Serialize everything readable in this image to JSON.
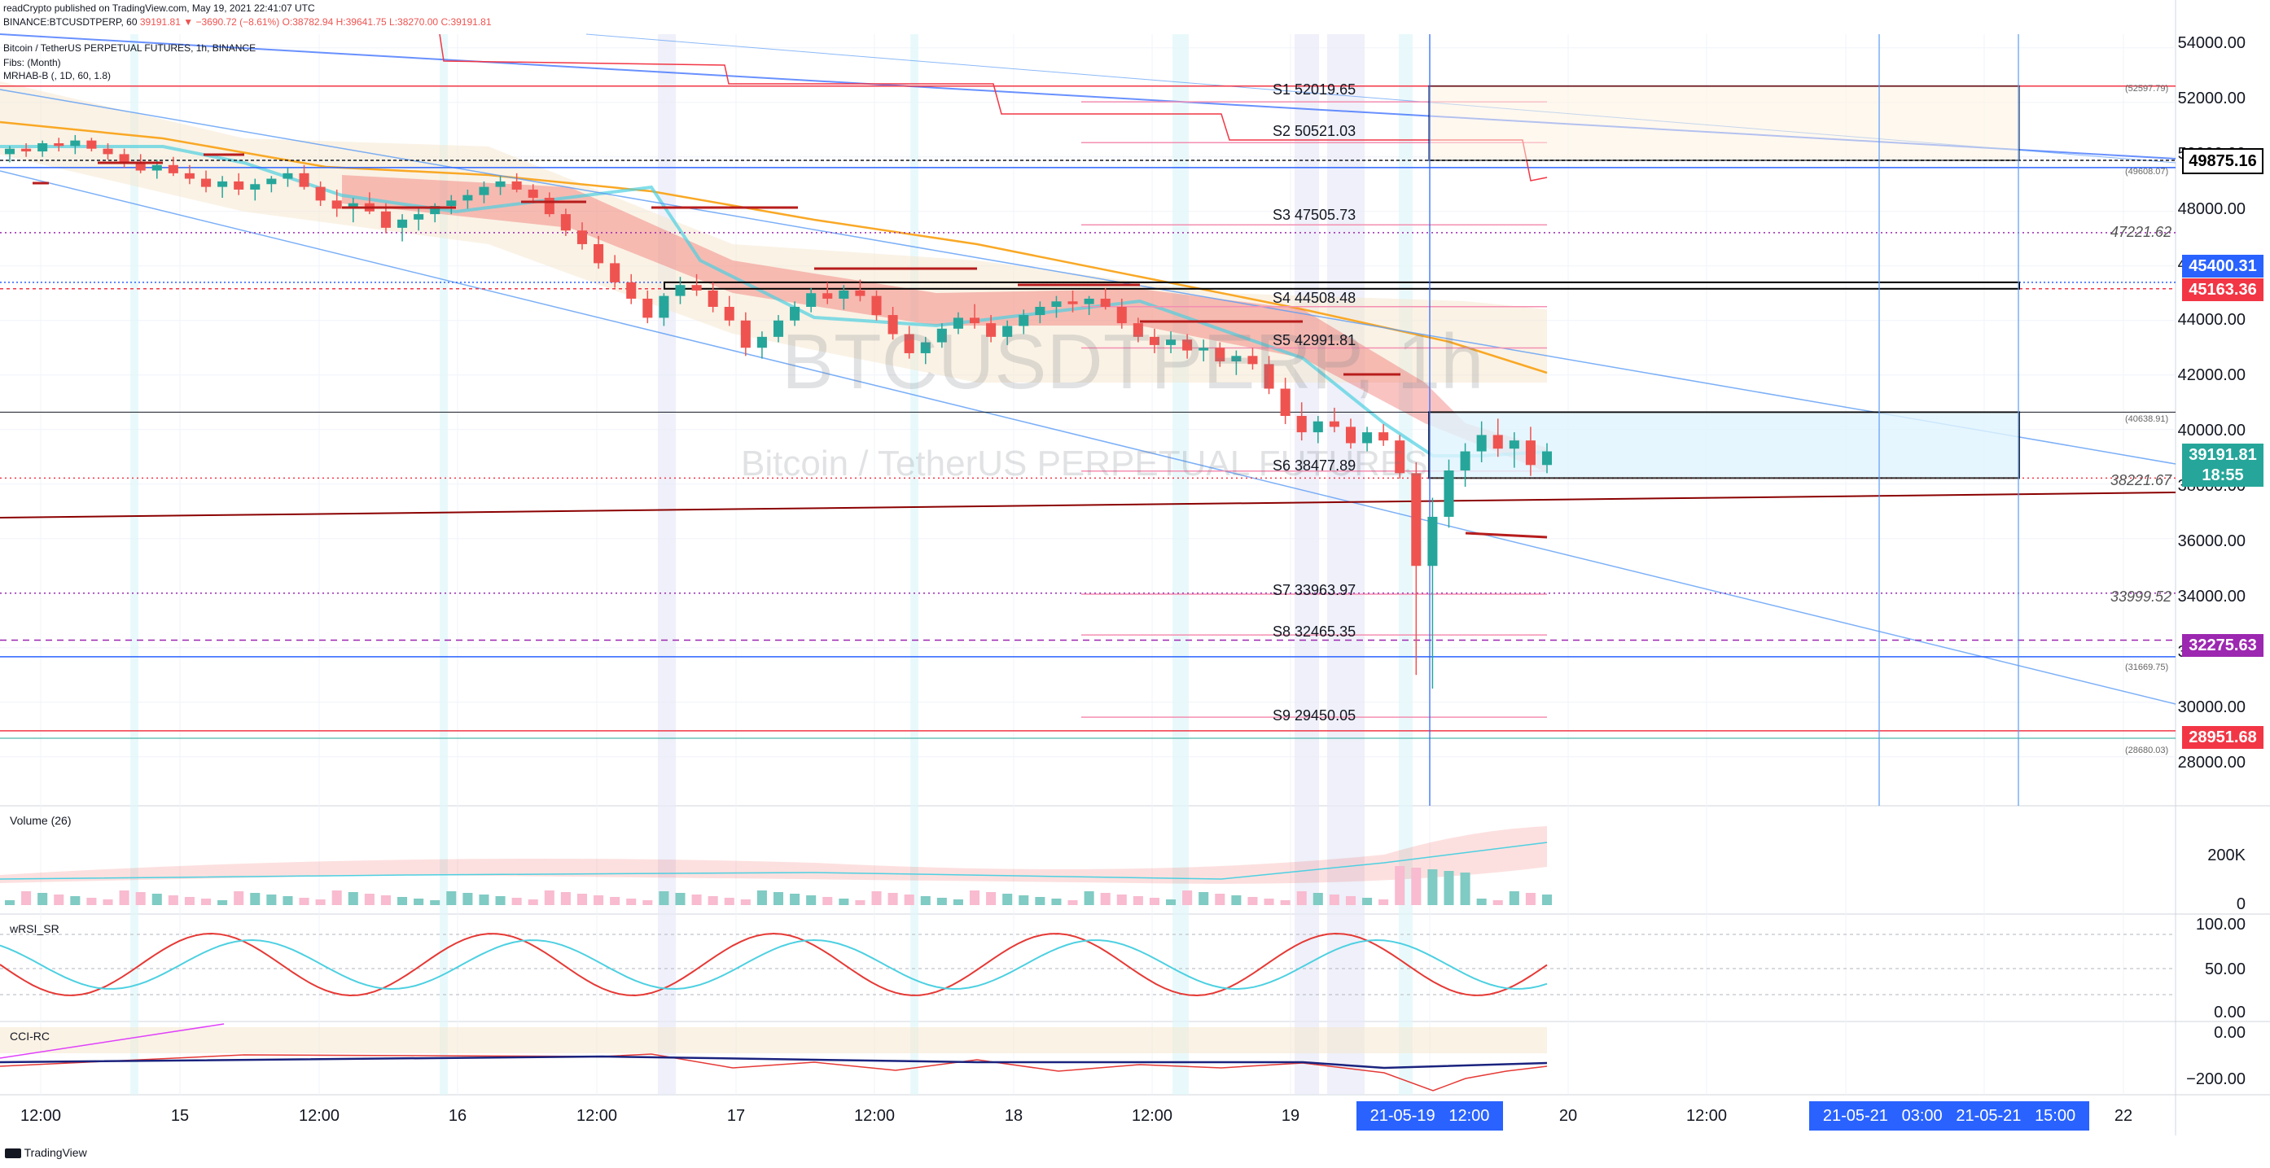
{
  "header": {
    "published": "readCrypto published on TradingView.com, May 19, 2021 22:41:07 UTC",
    "symbol_line_sym": "BINANCE:BTCUSDTPERP, 60",
    "symbol_line_last": "39191.81",
    "symbol_line_chg": "▼ −3690.72 (−8.61%)",
    "symbol_line_o": "O:38782.94",
    "symbol_line_h": "H:39641.75",
    "symbol_line_l": "L:38270.00",
    "symbol_line_c": "C:39191.81",
    "pane_title": "Bitcoin / TetherUS PERPETUAL FUTURES, 1h, BINANCE",
    "study1": "Fibs: (Month)",
    "study2": "MRHAB-B (, 1D, 60, 1.8)"
  },
  "watermark": {
    "ticker": "BTCUSDTPERP, 1h",
    "name": "Bitcoin / TetherUS PERPETUAL FUTURES"
  },
  "chart_data": {
    "type": "candlestick",
    "title": "Bitcoin / TetherUS PERPETUAL FUTURES, 1h, BINANCE",
    "y_ticks": [
      "54000.00",
      "52000.00",
      "50000.00",
      "48000.00",
      "46000.00",
      "44000.00",
      "42000.00",
      "40000.00",
      "38000.00",
      "36000.00",
      "34000.00",
      "32000.00",
      "30000.00",
      "28000.00"
    ],
    "ylim": [
      26500,
      54500
    ],
    "x_ticks": [
      "12:00",
      "15",
      "12:00",
      "16",
      "12:00",
      "17",
      "12:00",
      "18",
      "12:00",
      "19",
      "21-05-19",
      "12:00",
      "20",
      "12:00",
      "21-05-21",
      "03:00",
      "21-05-21",
      "15:00",
      "22"
    ],
    "price_labels": [
      {
        "value": "49875.16",
        "color": "#ffffff",
        "text": "#000000"
      },
      {
        "value": "45400.31",
        "color": "#2962ff"
      },
      {
        "value": "45163.36",
        "color": "#f23645"
      },
      {
        "value": "39191.81",
        "color": "#26a69a"
      },
      {
        "value": "18:55",
        "color": "#26a69a"
      },
      {
        "value": "32275.63",
        "color": "#9c27b0"
      },
      {
        "value": "28951.68",
        "color": "#f23645"
      }
    ],
    "fib_levels": [
      {
        "label": "S1 52019.65",
        "value": 52019.65
      },
      {
        "label": "S2 50521.03",
        "value": 50521.03
      },
      {
        "label": "S3 47505.73",
        "value": 47505.73
      },
      {
        "label": "S4 44508.48",
        "value": 44508.48
      },
      {
        "label": "S5 42991.81",
        "value": 42991.81
      },
      {
        "label": "S6 38477.89",
        "value": 38477.89
      },
      {
        "label": "S7 33963.97",
        "value": 33963.97
      },
      {
        "label": "S8 32465.35",
        "value": 32465.35
      },
      {
        "label": "S9 29450.05",
        "value": 29450.05
      }
    ],
    "right_labels": [
      "47221.62",
      "38221.67",
      "33999.52"
    ],
    "small_labels": [
      "(52597.79)",
      "(49608.07)",
      "(40638.91)",
      "(31669.75)",
      "(28680.03)"
    ],
    "candles": [
      [
        50100,
        50400,
        49800,
        50300
      ],
      [
        50300,
        50500,
        50000,
        50200
      ],
      [
        50200,
        50600,
        50000,
        50500
      ],
      [
        50500,
        50700,
        50200,
        50400
      ],
      [
        50400,
        50800,
        50100,
        50600
      ],
      [
        50600,
        50700,
        50200,
        50300
      ],
      [
        50300,
        50500,
        49900,
        50100
      ],
      [
        50100,
        50300,
        49600,
        49800
      ],
      [
        49800,
        50100,
        49400,
        49500
      ],
      [
        49500,
        49900,
        49200,
        49700
      ],
      [
        49700,
        50000,
        49300,
        49400
      ],
      [
        49400,
        49700,
        49000,
        49200
      ],
      [
        49200,
        49500,
        48700,
        48900
      ],
      [
        48900,
        49300,
        48500,
        49100
      ],
      [
        49100,
        49400,
        48600,
        48800
      ],
      [
        48800,
        49200,
        48400,
        49000
      ],
      [
        49000,
        49300,
        48700,
        49200
      ],
      [
        49200,
        49600,
        48900,
        49400
      ],
      [
        49400,
        49700,
        48800,
        48900
      ],
      [
        48900,
        49100,
        48200,
        48400
      ],
      [
        48400,
        48800,
        47800,
        48100
      ],
      [
        48100,
        48500,
        47600,
        48300
      ],
      [
        48300,
        48700,
        47900,
        48000
      ],
      [
        48000,
        48300,
        47200,
        47400
      ],
      [
        47400,
        47900,
        46900,
        47700
      ],
      [
        47700,
        48100,
        47300,
        47900
      ],
      [
        47900,
        48300,
        47600,
        48200
      ],
      [
        48200,
        48600,
        47900,
        48400
      ],
      [
        48400,
        48800,
        48100,
        48600
      ],
      [
        48600,
        49100,
        48300,
        48900
      ],
      [
        48900,
        49300,
        48600,
        49100
      ],
      [
        49100,
        49400,
        48700,
        48800
      ],
      [
        48800,
        49000,
        48300,
        48500
      ],
      [
        48500,
        48700,
        47800,
        47900
      ],
      [
        47900,
        48100,
        47100,
        47300
      ],
      [
        47300,
        47600,
        46600,
        46800
      ],
      [
        46800,
        47100,
        45900,
        46100
      ],
      [
        46100,
        46400,
        45200,
        45400
      ],
      [
        45400,
        45700,
        44600,
        44800
      ],
      [
        44800,
        45100,
        43900,
        44100
      ],
      [
        44100,
        45000,
        43800,
        44900
      ],
      [
        44900,
        45600,
        44600,
        45300
      ],
      [
        45300,
        45700,
        44900,
        45100
      ],
      [
        45100,
        45400,
        44300,
        44500
      ],
      [
        44500,
        44900,
        43800,
        44000
      ],
      [
        44000,
        44300,
        42700,
        43000
      ],
      [
        43000,
        43600,
        42600,
        43400
      ],
      [
        43400,
        44200,
        43200,
        44000
      ],
      [
        44000,
        44700,
        43800,
        44500
      ],
      [
        44500,
        45200,
        44300,
        45000
      ],
      [
        45000,
        45400,
        44600,
        44800
      ],
      [
        44800,
        45300,
        44400,
        45100
      ],
      [
        45100,
        45500,
        44700,
        44900
      ],
      [
        44900,
        45100,
        44000,
        44200
      ],
      [
        44200,
        44500,
        43300,
        43500
      ],
      [
        43500,
        43800,
        42600,
        42800
      ],
      [
        42800,
        43400,
        42400,
        43200
      ],
      [
        43200,
        43900,
        43000,
        43700
      ],
      [
        43700,
        44300,
        43500,
        44100
      ],
      [
        44100,
        44600,
        43700,
        43900
      ],
      [
        43900,
        44200,
        43200,
        43400
      ],
      [
        43400,
        44000,
        43100,
        43800
      ],
      [
        43800,
        44400,
        43500,
        44200
      ],
      [
        44200,
        44700,
        43900,
        44500
      ],
      [
        44500,
        44900,
        44100,
        44700
      ],
      [
        44700,
        45100,
        44300,
        44600
      ],
      [
        44600,
        44900,
        44200,
        44800
      ],
      [
        44800,
        45200,
        44400,
        44500
      ],
      [
        44500,
        44800,
        43700,
        43900
      ],
      [
        43900,
        44100,
        43200,
        43400
      ],
      [
        43400,
        43700,
        42800,
        43100
      ],
      [
        43100,
        43600,
        42800,
        43300
      ],
      [
        43300,
        43500,
        42600,
        42900
      ],
      [
        42900,
        43300,
        42500,
        43000
      ],
      [
        43000,
        43200,
        42300,
        42500
      ],
      [
        42500,
        42900,
        42000,
        42700
      ],
      [
        42700,
        43000,
        42200,
        42400
      ],
      [
        42400,
        42700,
        41300,
        41500
      ],
      [
        41500,
        41900,
        40200,
        40500
      ],
      [
        40500,
        41000,
        39600,
        39900
      ],
      [
        39900,
        40500,
        39500,
        40300
      ],
      [
        40300,
        40800,
        39900,
        40100
      ],
      [
        40100,
        40400,
        39300,
        39500
      ],
      [
        39500,
        40100,
        39200,
        39900
      ],
      [
        39900,
        40200,
        39400,
        39600
      ],
      [
        39600,
        39800,
        38200,
        38400
      ],
      [
        38400,
        38800,
        31000,
        35000
      ],
      [
        35000,
        37500,
        30500,
        36800
      ],
      [
        36800,
        38900,
        36400,
        38500
      ],
      [
        38500,
        39500,
        37900,
        39200
      ],
      [
        39200,
        40300,
        38800,
        39800
      ],
      [
        39800,
        40400,
        39000,
        39300
      ],
      [
        39300,
        39900,
        38600,
        39600
      ],
      [
        39600,
        40100,
        38300,
        38700
      ],
      [
        38700,
        39500,
        38400,
        39200
      ]
    ]
  },
  "indicators": {
    "volume_label": "Volume (26)",
    "volume_ticks": [
      "200K",
      "0"
    ],
    "rsi_label": "wRSI_SR",
    "rsi_ticks": [
      "100.00",
      "50.00",
      "0.00"
    ],
    "cci_label": "CCI-RC",
    "cci_ticks": [
      "0.00",
      "−200.00"
    ]
  },
  "footer": {
    "brand": "TradingView"
  },
  "colors": {
    "up": "#26a69a",
    "down": "#ef5350",
    "accent": "#2962ff",
    "ema": "#f9a825"
  }
}
